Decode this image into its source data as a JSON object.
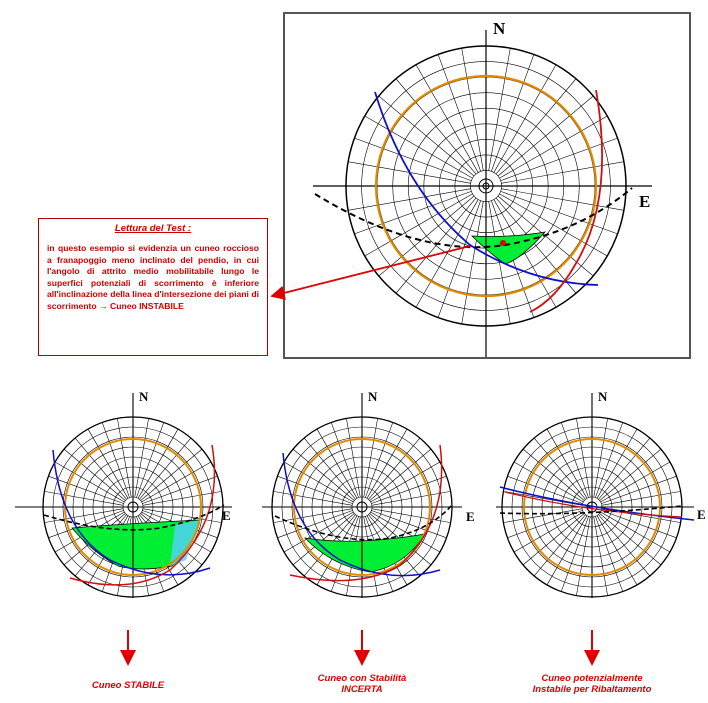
{
  "main_net": {
    "north_label": "N",
    "east_label": "E"
  },
  "test_note": {
    "title": "Lettura del Test :",
    "body": "in questo esempio si evidenzia un cuneo roccioso a franapoggio meno inclinato del pendio, in cui l'angolo di attrito medio mobilitabile lungo le superfici potenziali di scorrimento è inferiore all'inclinazione della linea d'intersezione dei piani di scorrimento → Cuneo INSTABILE"
  },
  "small_nets": [
    {
      "north_label": "N",
      "east_label": "E",
      "caption_lines": [
        "Cuneo STABILE"
      ]
    },
    {
      "north_label": "N",
      "east_label": "E",
      "caption_lines": [
        "Cuneo con Stabilità",
        "INCERTA"
      ]
    },
    {
      "north_label": "N",
      "east_label": "E",
      "caption_lines": [
        "Cuneo potenzialmente",
        "Instabile per Ribaltamento"
      ]
    }
  ],
  "colors": {
    "plane_a": "#1010cc",
    "plane_b": "#d01010",
    "friction_cone": "#e08a00",
    "wedge_fill": "#00ee33",
    "slope_face": "#000000",
    "annotation": "#e00000"
  }
}
